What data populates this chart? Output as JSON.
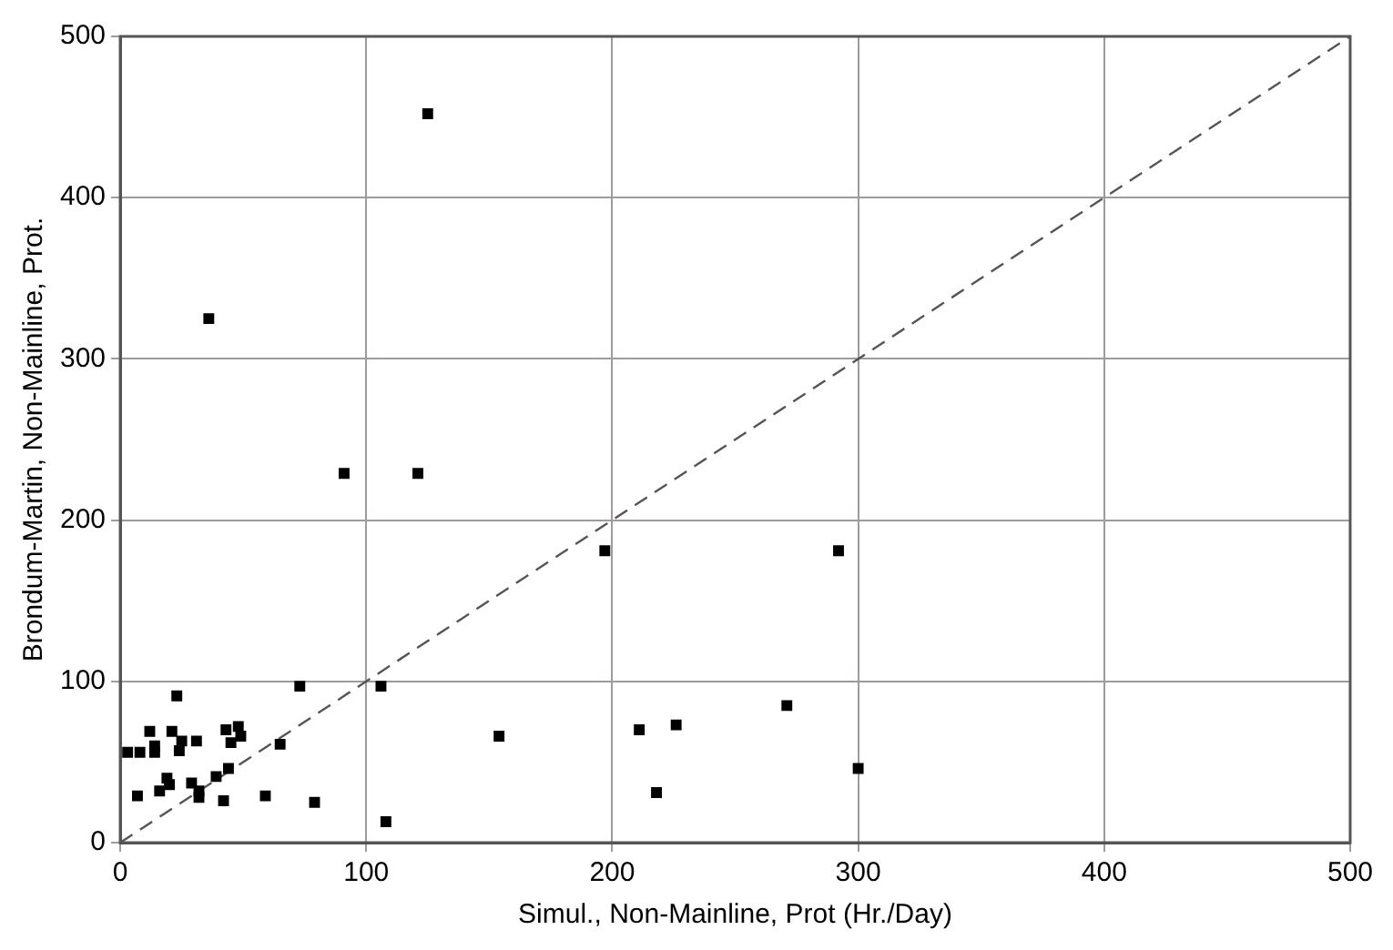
{
  "chart_data": {
    "type": "scatter",
    "xlabel": "Simul., Non-Mainline, Prot (Hr./Day)",
    "ylabel": "Brondum-Martin, Non-Mainline, Prot.",
    "xlim": [
      0,
      500
    ],
    "ylim": [
      0,
      500
    ],
    "xticks": [
      0,
      100,
      200,
      300,
      400,
      500
    ],
    "yticks": [
      0,
      100,
      200,
      300,
      400,
      500
    ],
    "grid": true,
    "marker": "square",
    "series": [
      {
        "type": "scatter",
        "color": "#000000",
        "x": [
          125,
          36,
          91,
          121,
          197,
          292,
          73,
          106,
          23,
          154,
          211,
          226,
          271,
          300,
          218,
          108,
          79,
          59,
          42,
          7,
          3,
          8,
          12,
          14,
          14,
          21,
          24,
          25,
          31,
          43,
          48,
          49,
          45,
          65,
          19,
          20,
          16,
          29,
          32,
          39,
          44,
          32
        ],
        "values": [
          452,
          325,
          229,
          229,
          181,
          181,
          97,
          97,
          91,
          66,
          70,
          73,
          85,
          46,
          31,
          13,
          25,
          29,
          26,
          29,
          56,
          56,
          69,
          60,
          56,
          69,
          57,
          63,
          63,
          70,
          72,
          66,
          62,
          61,
          40,
          36,
          32,
          37,
          32,
          41,
          46,
          28
        ]
      },
      {
        "type": "line",
        "color": "#555555",
        "line_style": "dashed",
        "marker": "none",
        "x": [
          0,
          500
        ],
        "values": [
          0,
          500
        ]
      }
    ]
  }
}
